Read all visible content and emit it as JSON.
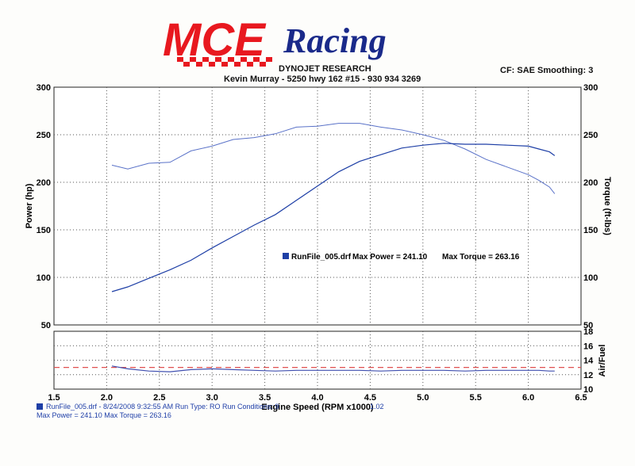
{
  "logo": {
    "brand_text": "MCE",
    "racing_text": "Racing"
  },
  "header": {
    "company": "DYNOJET RESEARCH",
    "customer": "Kevin Murray  - 5250 hwy 162 #15 - 930 934 3269",
    "settings": "CF: SAE  Smoothing: 3"
  },
  "legend": {
    "run_file": "RunFile_005.drf",
    "max_power_text": "Max Power = 241.10",
    "max_torque_text": "Max Torque = 263.16"
  },
  "footer": {
    "line1": "RunFile_005.drf - 8/24/2008 9:32:55 AM  Run Type: RO  Run Conditions: 9",
    "line1_tail": "1.02",
    "line2": "Max Power = 241.10  Max Torque = 263.16"
  },
  "colors": {
    "power": "#1e3fa6",
    "torque": "#5a72c8",
    "afr": "#4050b0",
    "afr_target": "#e05050",
    "brand_red": "#e8181f",
    "brand_blue": "#1a2a8a"
  },
  "chart_data": [
    {
      "type": "line",
      "xlabel": "Engine Speed (RPM x1000)",
      "ylabel": "Power (hp)",
      "ylabel_right": "Torque (ft-lbs)",
      "xlim": [
        1.5,
        6.5
      ],
      "ylim": [
        50,
        300
      ],
      "ylim_right": [
        50,
        300
      ],
      "x_ticks": [
        "1.5",
        "2.0",
        "2.5",
        "3.0",
        "3.5",
        "4.0",
        "4.5",
        "5.0",
        "5.5",
        "6.0",
        "6.5"
      ],
      "y_ticks": [
        "50",
        "100",
        "150",
        "200",
        "250",
        "300"
      ],
      "y_ticks_right": [
        "50",
        "100",
        "150",
        "200",
        "250",
        "300"
      ],
      "grid": true,
      "series": [
        {
          "name": "RunFile_005.drf Max Power = 241.10",
          "x": [
            2.05,
            2.2,
            2.4,
            2.6,
            2.8,
            3.0,
            3.2,
            3.4,
            3.6,
            3.8,
            4.0,
            4.2,
            4.4,
            4.6,
            4.8,
            5.0,
            5.2,
            5.4,
            5.6,
            5.8,
            6.0,
            6.1,
            6.2,
            6.25
          ],
          "values": [
            85,
            90,
            99,
            108,
            118,
            131,
            143,
            155,
            166,
            181,
            196,
            211,
            222,
            229,
            236,
            239,
            241,
            240,
            240,
            239,
            238,
            235,
            232,
            228
          ]
        },
        {
          "name": "Max Torque = 263.16",
          "x": [
            2.05,
            2.2,
            2.4,
            2.6,
            2.8,
            3.0,
            3.2,
            3.4,
            3.6,
            3.8,
            4.0,
            4.2,
            4.4,
            4.6,
            4.8,
            5.0,
            5.2,
            5.4,
            5.6,
            5.8,
            6.0,
            6.1,
            6.2,
            6.25
          ],
          "values": [
            218,
            214,
            220,
            221,
            233,
            238,
            245,
            247,
            251,
            258,
            259,
            262,
            262,
            258,
            255,
            250,
            244,
            235,
            224,
            216,
            208,
            202,
            195,
            188
          ]
        }
      ]
    },
    {
      "type": "line",
      "ylabel": "Air/Fuel",
      "xlim": [
        1.5,
        6.5
      ],
      "ylim": [
        10,
        18
      ],
      "y_ticks": [
        "10",
        "12",
        "14",
        "16",
        "18"
      ],
      "grid": true,
      "series": [
        {
          "x": [
            2.05,
            2.2,
            2.4,
            2.6,
            2.8,
            3.0,
            3.2,
            3.4,
            3.6,
            3.8,
            4.0,
            4.2,
            4.4,
            4.6,
            4.8,
            5.0,
            5.2,
            5.4,
            5.6,
            5.8,
            6.0,
            6.1,
            6.2,
            6.25
          ],
          "values": [
            13.2,
            12.8,
            12.5,
            12.4,
            12.7,
            12.8,
            12.7,
            12.6,
            12.5,
            12.6,
            12.6,
            12.6,
            12.6,
            12.5,
            12.6,
            12.6,
            12.6,
            12.5,
            12.6,
            12.6,
            12.6,
            12.6,
            12.5,
            12.5
          ]
        },
        {
          "x": [
            1.5,
            6.5
          ],
          "values": [
            13.0,
            13.0
          ]
        }
      ]
    }
  ]
}
